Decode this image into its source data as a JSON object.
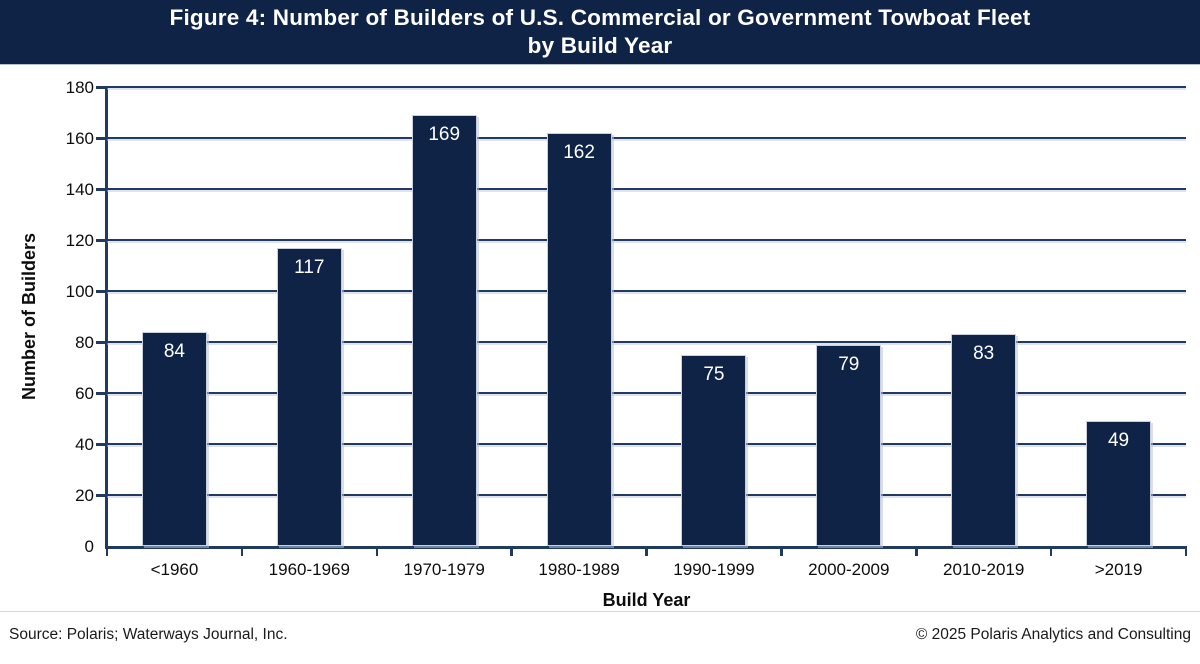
{
  "title": {
    "line1": "Figure 4: Number of Builders of U.S. Commercial or Government Towboat Fleet",
    "line2": "by Build Year"
  },
  "chart_data": {
    "type": "bar",
    "title": "Figure 4: Number of Builders of U.S. Commercial or Government Towboat Fleet by Build Year",
    "categories": [
      "<1960",
      "1960-1969",
      "1970-1979",
      "1980-1989",
      "1990-1999",
      "2000-2009",
      "2010-2019",
      ">2019"
    ],
    "values": [
      84,
      117,
      169,
      162,
      75,
      79,
      83,
      49
    ],
    "xlabel": "Build Year",
    "ylabel": "Number of Builders",
    "ylim": [
      0,
      180
    ],
    "ytick_step": 20,
    "yticks": [
      0,
      20,
      40,
      60,
      80,
      100,
      120,
      140,
      160,
      180
    ],
    "grid": true,
    "legend": "none",
    "bar_label_position": "inside-end",
    "colors": {
      "title_band_bg": "#0f2347",
      "title_text": "#ffffff",
      "bar_fill": "#0f2347",
      "bar_outline": "#c9cfde",
      "gridline": "#203a61",
      "axis_line": "#203a61",
      "tick_label": "#0d0d0d",
      "bar_label": "#ffffff"
    }
  },
  "footer": {
    "source": "Source: Polaris; Waterways Journal, Inc.",
    "copyright": "© 2025 Polaris Analytics and Consulting"
  }
}
